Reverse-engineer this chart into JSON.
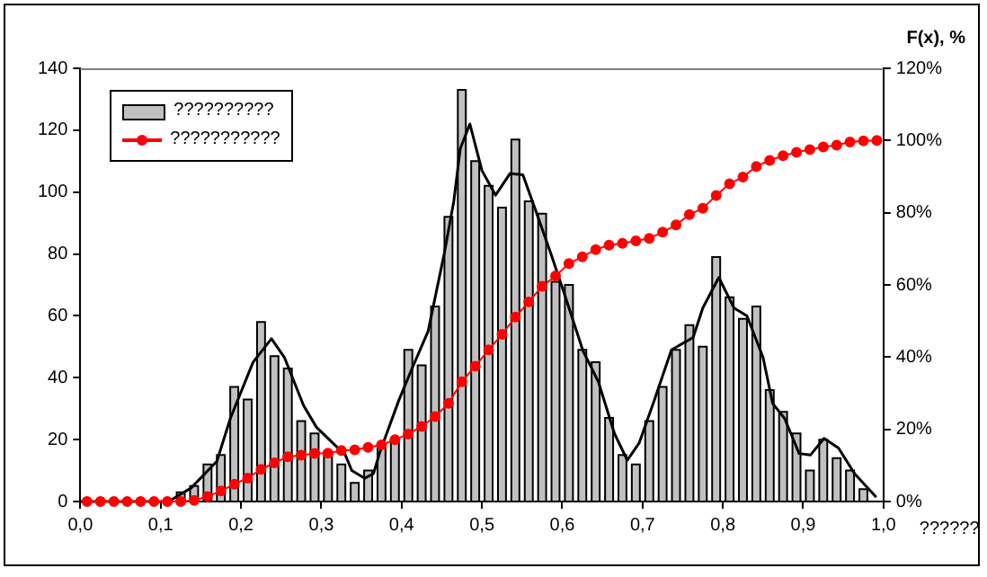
{
  "chart_data": {
    "type": "histogram",
    "xlabel": "??????",
    "y2label": "F(x), %",
    "bins": [
      0,
      0.0167,
      0.0333,
      0.05,
      0.0667,
      0.0833,
      0.1,
      0.1167,
      0.1333,
      0.15,
      0.1667,
      0.1833,
      0.2,
      0.2167,
      0.2333,
      0.25,
      0.2667,
      0.2833,
      0.3,
      0.3167,
      0.3333,
      0.35,
      0.3667,
      0.3833,
      0.4,
      0.4167,
      0.4333,
      0.45,
      0.4667,
      0.4833,
      0.5,
      0.5167,
      0.5333,
      0.55,
      0.5667,
      0.5833,
      0.6,
      0.6167,
      0.6333,
      0.65,
      0.6667,
      0.6833,
      0.7,
      0.7167,
      0.7333,
      0.75,
      0.7667,
      0.7833,
      0.8,
      0.8167,
      0.8333,
      0.85,
      0.8667,
      0.8833,
      0.9,
      0.9167,
      0.9333,
      0.95,
      0.9667,
      0.9833,
      1
    ],
    "series": [
      {
        "name": "??????????",
        "color": "#c0c0c0",
        "values": [
          0,
          0,
          0,
          0,
          0,
          0,
          0,
          3,
          5,
          12,
          15,
          37,
          33,
          58,
          47,
          43,
          26,
          22,
          16,
          12,
          6,
          10,
          18,
          20,
          49,
          44,
          63,
          92,
          133,
          110,
          102,
          95,
          117,
          97,
          93,
          71,
          70,
          49,
          45,
          27,
          15,
          12,
          26,
          37,
          49,
          57,
          50,
          79,
          66,
          59,
          63,
          36,
          29,
          22,
          10,
          20,
          14,
          10,
          4,
          0
        ]
      },
      {
        "type": "line",
        "name": "???????????",
        "color": "#ff0000",
        "axis": "y2",
        "marker": "circle",
        "x": [
          0.0083,
          0.025,
          0.0417,
          0.0583,
          0.075,
          0.0917,
          0.1083,
          0.125,
          0.1417,
          0.1583,
          0.175,
          0.1917,
          0.2083,
          0.225,
          0.2417,
          0.2583,
          0.275,
          0.2917,
          0.3083,
          0.325,
          0.3417,
          0.3583,
          0.375,
          0.3917,
          0.4083,
          0.425,
          0.4417,
          0.4583,
          0.475,
          0.4917,
          0.5083,
          0.525,
          0.5417,
          0.5583,
          0.575,
          0.5917,
          0.6083,
          0.625,
          0.6417,
          0.6583,
          0.675,
          0.6917,
          0.7083,
          0.725,
          0.7417,
          0.7583,
          0.775,
          0.7917,
          0.8083,
          0.825,
          0.8417,
          0.8583,
          0.875,
          0.8917,
          0.9083,
          0.925,
          0.9417,
          0.9583,
          0.975,
          0.9917
        ],
        "values": [
          0,
          0,
          0,
          0,
          0,
          0,
          0,
          0,
          0.3,
          1.4,
          2.9,
          4.8,
          6.5,
          8.9,
          10.7,
          12.4,
          12.8,
          13.3,
          13.4,
          14.1,
          14.3,
          15,
          15.7,
          17.1,
          18.7,
          20.8,
          23.5,
          27.2,
          33.2,
          37.5,
          42,
          46.3,
          51.1,
          55.3,
          59.6,
          62.5,
          65.9,
          67.8,
          69.8,
          71,
          71.5,
          72.2,
          72.9,
          74.6,
          76.6,
          79.5,
          81.2,
          84.8,
          88,
          89.9,
          92.8,
          94.5,
          95.8,
          96.7,
          97.5,
          98.2,
          98.7,
          99.6,
          99.9,
          100
        ]
      },
      {
        "type": "line",
        "color": "#000000",
        "marker": "none",
        "x": [
          0,
          0.11,
          0.138,
          0.17,
          0.187,
          0.215,
          0.238,
          0.254,
          0.278,
          0.294,
          0.314,
          0.33,
          0.338,
          0.354,
          0.365,
          0.373,
          0.397,
          0.413,
          0.433,
          0.453,
          0.465,
          0.473,
          0.485,
          0.5,
          0.517,
          0.535,
          0.551,
          0.567,
          0.586,
          0.606,
          0.626,
          0.645,
          0.665,
          0.681,
          0.696,
          0.715,
          0.736,
          0.763,
          0.775,
          0.795,
          0.814,
          0.83,
          0.85,
          0.862,
          0.877,
          0.895,
          0.909,
          0.926,
          0.944,
          0.964,
          0.991
        ],
        "values": [
          0,
          0,
          4.4,
          13,
          27,
          45,
          52.6,
          46.6,
          31,
          24,
          19,
          15,
          10,
          7.5,
          9,
          16,
          33,
          43,
          55,
          80,
          97,
          114,
          122,
          107,
          99,
          106,
          105.6,
          94,
          80,
          64.5,
          48.6,
          38.7,
          22,
          13.3,
          19,
          33,
          49,
          53,
          62.5,
          72.4,
          62.5,
          60,
          46.6,
          31.7,
          26.8,
          15.5,
          15,
          20.4,
          17.3,
          9,
          1.4
        ]
      }
    ],
    "xlim": [
      0,
      1
    ],
    "xticks": [
      {
        "value": 0,
        "label": "0,0"
      },
      {
        "value": 0.1,
        "label": "0,1"
      },
      {
        "value": 0.2,
        "label": "0,2"
      },
      {
        "value": 0.3,
        "label": "0,3"
      },
      {
        "value": 0.4,
        "label": "0,4"
      },
      {
        "value": 0.5,
        "label": "0,5"
      },
      {
        "value": 0.6,
        "label": "0,6"
      },
      {
        "value": 0.7,
        "label": "0,7"
      },
      {
        "value": 0.8,
        "label": "0,8"
      },
      {
        "value": 0.9,
        "label": "0,9"
      },
      {
        "value": 1,
        "label": "1,0"
      }
    ],
    "ylim": [
      0,
      140
    ],
    "yticks": [
      0,
      20,
      40,
      60,
      80,
      100,
      120,
      140
    ],
    "y2lim": [
      0,
      120
    ],
    "y2ticks": [
      {
        "value": 0,
        "label": "0%"
      },
      {
        "value": 20,
        "label": "20%"
      },
      {
        "value": 40,
        "label": "40%"
      },
      {
        "value": 60,
        "label": "60%"
      },
      {
        "value": 80,
        "label": "80%"
      },
      {
        "value": 100,
        "label": "100%"
      },
      {
        "value": 120,
        "label": "120%"
      }
    ],
    "grid": false,
    "legend": "top left"
  }
}
